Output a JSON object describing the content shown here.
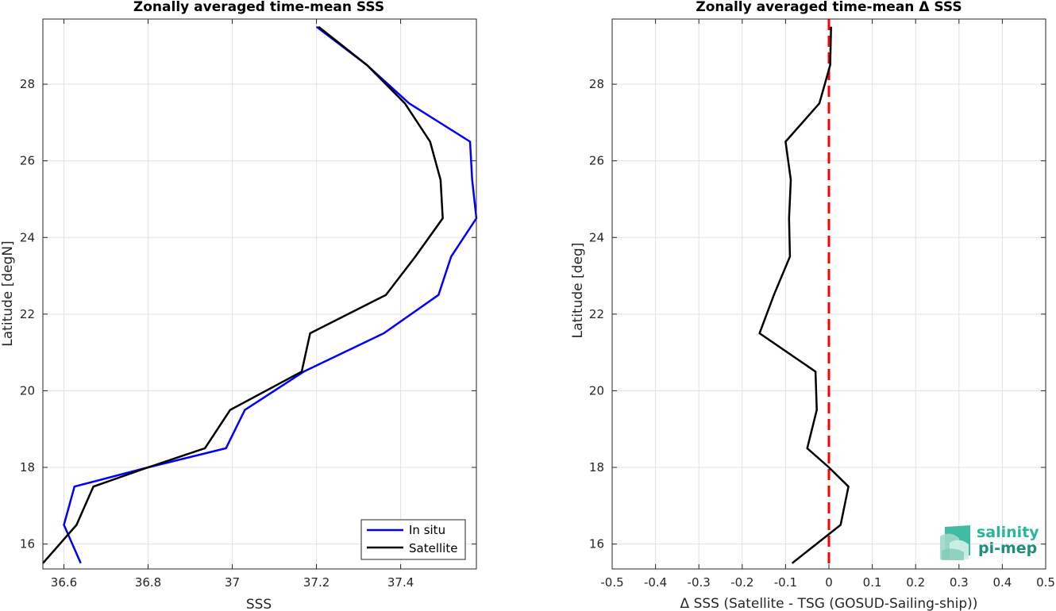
{
  "chart_data": [
    {
      "type": "line",
      "title": "Zonally averaged time-mean SSS",
      "xlabel": "SSS",
      "ylabel": "Latitude [degN]",
      "xlim": [
        36.55,
        37.58
      ],
      "ylim": [
        15.35,
        29.7
      ],
      "xticks": [
        "36.6",
        "36.8",
        "37",
        "37.2",
        "37.4"
      ],
      "xtick_values": [
        36.6,
        36.8,
        37.0,
        37.2,
        37.4
      ],
      "yticks": [
        "16",
        "18",
        "20",
        "22",
        "24",
        "26",
        "28"
      ],
      "ytick_values": [
        16,
        18,
        20,
        22,
        24,
        26,
        28
      ],
      "grid": true,
      "legend_position": "bottom-right",
      "series": [
        {
          "name": "In situ",
          "color": "#0000ff",
          "x": [
            36.64,
            36.6,
            36.625,
            36.8,
            36.985,
            37.03,
            37.17,
            37.36,
            37.49,
            37.52,
            37.58,
            37.57,
            37.565,
            37.42,
            37.32,
            37.2
          ],
          "y": [
            15.5,
            16.5,
            17.5,
            18.0,
            18.5,
            19.5,
            20.5,
            21.5,
            22.5,
            23.5,
            24.5,
            25.5,
            26.5,
            27.5,
            28.5,
            29.5
          ]
        },
        {
          "name": "Satellite",
          "color": "#000000",
          "x": [
            36.55,
            36.63,
            36.67,
            36.8,
            36.935,
            36.995,
            37.165,
            37.185,
            37.365,
            37.435,
            37.5,
            37.495,
            37.47,
            37.41,
            37.32,
            37.205
          ],
          "y": [
            15.5,
            16.5,
            17.5,
            18.0,
            18.5,
            19.5,
            20.5,
            21.5,
            22.5,
            23.5,
            24.5,
            25.5,
            26.5,
            27.5,
            28.5,
            29.5
          ]
        }
      ]
    },
    {
      "type": "line",
      "title": "Zonally averaged time-mean Δ SSS",
      "xlabel": "Δ SSS (Satellite - TSG (GOSUD-Sailing-ship))",
      "ylabel": "Latitude [deg]",
      "xlim": [
        -0.5,
        0.5
      ],
      "ylim": [
        15.35,
        29.7
      ],
      "xticks": [
        "-0.5",
        "-0.4",
        "-0.3",
        "-0.2",
        "-0.1",
        "0",
        "0.1",
        "0.2",
        "0.3",
        "0.4",
        "0.5"
      ],
      "xtick_values": [
        -0.5,
        -0.4,
        -0.3,
        -0.2,
        -0.1,
        0,
        0.1,
        0.2,
        0.3,
        0.4,
        0.5
      ],
      "yticks": [
        "16",
        "18",
        "20",
        "22",
        "24",
        "26",
        "28"
      ],
      "ytick_values": [
        16,
        18,
        20,
        22,
        24,
        26,
        28
      ],
      "grid": true,
      "series": [
        {
          "color": "#000000",
          "x": [
            -0.085,
            0.027,
            0.045,
            0.0,
            -0.05,
            -0.028,
            -0.031,
            -0.16,
            -0.127,
            -0.09,
            -0.092,
            -0.088,
            -0.1,
            -0.022,
            0.003,
            0.005
          ],
          "y": [
            15.5,
            16.5,
            17.5,
            18.0,
            18.5,
            19.5,
            20.5,
            21.5,
            22.5,
            23.5,
            24.5,
            25.5,
            26.5,
            27.5,
            28.5,
            29.5
          ]
        }
      ],
      "reference_line": {
        "x": 0,
        "color": "#ff0000",
        "style": "dashed"
      }
    }
  ],
  "logo": {
    "line1": "salinity",
    "line2": "pi-mep"
  }
}
